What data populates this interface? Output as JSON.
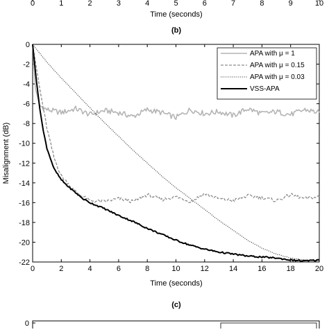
{
  "top_strip": {
    "x_ticks": [
      "0",
      "1",
      "2",
      "3",
      "4",
      "5",
      "6",
      "7",
      "8",
      "9",
      "10"
    ],
    "xlabel": "Time (seconds)"
  },
  "panel_b_label": "(b)",
  "panel_c_label": "(c)",
  "bottom_strip": {
    "y_ticks": [
      "0"
    ]
  },
  "chart_data": {
    "type": "line",
    "title": "",
    "xlabel": "Time (seconds)",
    "ylabel": "Misalignment (dB)",
    "xlim": [
      0,
      20
    ],
    "ylim": [
      -22,
      0
    ],
    "x_ticks": [
      0,
      2,
      4,
      6,
      8,
      10,
      12,
      14,
      16,
      18,
      20
    ],
    "y_ticks": [
      0,
      -2,
      -4,
      -6,
      -8,
      -10,
      -12,
      -14,
      -16,
      -18,
      -20,
      -22
    ],
    "grid": false,
    "legend_position": "top-right",
    "series": [
      {
        "name": "APA with μ = 1",
        "style": "solid-light-gray",
        "color": "#b4b4b4",
        "x": [
          0,
          0.2,
          0.5,
          1,
          2,
          3,
          4,
          5,
          6,
          7,
          8,
          9,
          10,
          11,
          12,
          13,
          14,
          15,
          16,
          17,
          18,
          19,
          20
        ],
        "y": [
          0,
          -4.5,
          -6.2,
          -6.6,
          -6.9,
          -6.5,
          -7.1,
          -6.7,
          -6.9,
          -7.3,
          -6.6,
          -6.9,
          -7.4,
          -6.6,
          -7.0,
          -6.8,
          -7.2,
          -6.5,
          -7.0,
          -6.8,
          -7.1,
          -6.6,
          -6.9
        ]
      },
      {
        "name": "APA with μ = 0.15",
        "style": "dashed-gray",
        "color": "#8c8c8c",
        "x": [
          0,
          0.5,
          1,
          1.5,
          2,
          3,
          4,
          5,
          6,
          7,
          8,
          9,
          10,
          11,
          12,
          13,
          14,
          15,
          16,
          17,
          18,
          19,
          20
        ],
        "y": [
          0,
          -4.5,
          -8.5,
          -11.5,
          -13.3,
          -14.9,
          -15.8,
          -15.9,
          -15.6,
          -15.9,
          -15.2,
          -15.7,
          -15.4,
          -15.9,
          -15.1,
          -15.6,
          -15.8,
          -15.3,
          -15.5,
          -15.8,
          -15.2,
          -15.6,
          -15.4
        ]
      },
      {
        "name": "APA with μ = 0.03",
        "style": "dotted-dark",
        "color": "#444444",
        "x": [
          0,
          1,
          2,
          3,
          4,
          5,
          6,
          7,
          8,
          9,
          10,
          11,
          12,
          13,
          14,
          15,
          16,
          17,
          18,
          19,
          20
        ],
        "y": [
          0,
          -1.8,
          -3.4,
          -4.9,
          -6.4,
          -7.9,
          -9.3,
          -10.7,
          -12.0,
          -13.3,
          -14.5,
          -15.6,
          -16.7,
          -17.8,
          -18.8,
          -19.8,
          -20.6,
          -21.2,
          -21.6,
          -21.8,
          -21.9
        ]
      },
      {
        "name": "VSS-APA",
        "style": "solid-thick-black",
        "color": "#000000",
        "x": [
          0,
          0.25,
          0.5,
          0.75,
          1,
          1.5,
          2,
          2.5,
          3,
          3.5,
          4,
          5,
          6,
          7,
          8,
          9,
          10,
          11,
          12,
          13,
          14,
          15,
          16,
          17,
          18,
          19,
          20
        ],
        "y": [
          0,
          -3.5,
          -6.5,
          -8.8,
          -10.5,
          -12.6,
          -13.7,
          -14.4,
          -15.0,
          -15.6,
          -16.0,
          -16.6,
          -17.3,
          -17.9,
          -18.6,
          -19.2,
          -19.8,
          -20.3,
          -20.7,
          -21.0,
          -21.2,
          -21.4,
          -21.5,
          -21.6,
          -21.8,
          -21.9,
          -21.8
        ]
      }
    ]
  }
}
